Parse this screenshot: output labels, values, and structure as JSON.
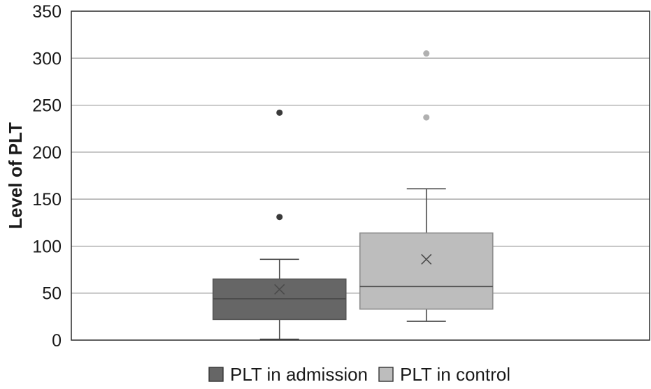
{
  "chart_data": {
    "type": "box",
    "title": "",
    "xlabel": "",
    "ylabel": "Level of PLT",
    "ylim": [
      0,
      350
    ],
    "yticks": [
      0,
      50,
      100,
      150,
      200,
      250,
      300,
      350
    ],
    "grid": true,
    "legend_position": "bottom",
    "series": [
      {
        "name": "PLT in admission",
        "color": "#666666",
        "min": 1,
        "q1": 22,
        "median": 44,
        "q3": 65,
        "max": 86,
        "mean": 54,
        "outliers": [
          131,
          242
        ]
      },
      {
        "name": "PLT in control",
        "color": "#bdbdbd",
        "min": 20,
        "q1": 33,
        "median": 57,
        "q3": 114,
        "max": 161,
        "mean": 86,
        "outliers": [
          237,
          305
        ]
      }
    ]
  }
}
